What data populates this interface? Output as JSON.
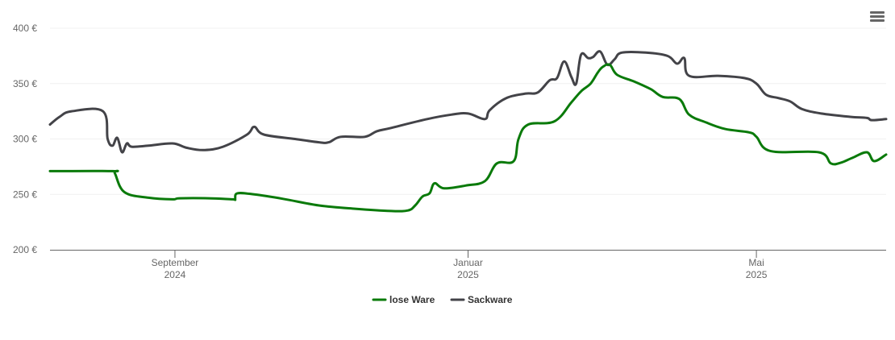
{
  "chart_data": {
    "type": "line",
    "title": "",
    "xlabel": "",
    "ylabel": "",
    "ylim": [
      200,
      400
    ],
    "y_ticks": [
      {
        "value": 200,
        "label": "200 €"
      },
      {
        "value": 250,
        "label": "250 €"
      },
      {
        "value": 300,
        "label": "300 €"
      },
      {
        "value": 350,
        "label": "350 €"
      },
      {
        "value": 400,
        "label": "400 €"
      }
    ],
    "xlim": [
      "2024-07-11",
      "2025-06-24"
    ],
    "x_ticks": [
      {
        "date": "2024-09-01",
        "label": "September",
        "year": "2024"
      },
      {
        "date": "2025-01-01",
        "label": "Januar",
        "year": "2025"
      },
      {
        "date": "2025-05-01",
        "label": "Mai",
        "year": "2025"
      }
    ],
    "grid": true,
    "legend_position": "bottom-center",
    "series": [
      {
        "name": "lose Ware",
        "color": "#0a7a0a",
        "points": [
          [
            "2024-07-11",
            271
          ],
          [
            "2024-08-06",
            271
          ],
          [
            "2024-08-07",
            269
          ],
          [
            "2024-08-11",
            252
          ],
          [
            "2024-08-21",
            247
          ],
          [
            "2024-08-31",
            245.5
          ],
          [
            "2024-09-03",
            246.5
          ],
          [
            "2024-09-15",
            246.5
          ],
          [
            "2024-09-25",
            245.5
          ],
          [
            "2024-09-26",
            245.5
          ],
          [
            "2024-09-27",
            251
          ],
          [
            "2024-10-04",
            250
          ],
          [
            "2024-10-16",
            246
          ],
          [
            "2024-10-31",
            240
          ],
          [
            "2024-11-15",
            237
          ],
          [
            "2024-11-30",
            235
          ],
          [
            "2024-12-07",
            235.5
          ],
          [
            "2024-12-10",
            240
          ],
          [
            "2024-12-13",
            248
          ],
          [
            "2024-12-16",
            251
          ],
          [
            "2024-12-18",
            260
          ],
          [
            "2024-12-22",
            255.5
          ],
          [
            "2024-12-31",
            258
          ],
          [
            "2025-01-08",
            262
          ],
          [
            "2025-01-13",
            278
          ],
          [
            "2025-01-20",
            280
          ],
          [
            "2025-01-22",
            300
          ],
          [
            "2025-01-26",
            313
          ],
          [
            "2025-02-06",
            316
          ],
          [
            "2025-02-13",
            333
          ],
          [
            "2025-02-17",
            343
          ],
          [
            "2025-02-21",
            350
          ],
          [
            "2025-02-24",
            360
          ],
          [
            "2025-02-26",
            365
          ],
          [
            "2025-03-01",
            367
          ],
          [
            "2025-03-04",
            358
          ],
          [
            "2025-03-11",
            352
          ],
          [
            "2025-03-18",
            345
          ],
          [
            "2025-03-23",
            338
          ],
          [
            "2025-03-30",
            336
          ],
          [
            "2025-04-03",
            322
          ],
          [
            "2025-04-10",
            315
          ],
          [
            "2025-04-18",
            309
          ],
          [
            "2025-04-28",
            306
          ],
          [
            "2025-05-01",
            302
          ],
          [
            "2025-05-07",
            289
          ],
          [
            "2025-05-27",
            288
          ],
          [
            "2025-06-01",
            278
          ],
          [
            "2025-06-05",
            278.5
          ],
          [
            "2025-06-10",
            283
          ],
          [
            "2025-06-16",
            288
          ],
          [
            "2025-06-19",
            280
          ],
          [
            "2025-06-24",
            286
          ]
        ]
      },
      {
        "name": "Sackware",
        "color": "#434348",
        "points": [
          [
            "2024-07-11",
            313
          ],
          [
            "2024-07-15",
            320
          ],
          [
            "2024-07-20",
            325
          ],
          [
            "2024-08-02",
            325
          ],
          [
            "2024-08-04",
            300
          ],
          [
            "2024-08-06",
            294
          ],
          [
            "2024-08-08",
            301
          ],
          [
            "2024-08-10",
            288
          ],
          [
            "2024-08-12",
            296
          ],
          [
            "2024-08-14",
            293
          ],
          [
            "2024-08-21",
            294
          ],
          [
            "2024-08-31",
            296
          ],
          [
            "2024-09-06",
            292
          ],
          [
            "2024-09-13",
            290
          ],
          [
            "2024-09-21",
            293
          ],
          [
            "2024-10-01",
            304
          ],
          [
            "2024-10-04",
            311
          ],
          [
            "2024-10-08",
            304
          ],
          [
            "2024-10-21",
            300
          ],
          [
            "2024-10-31",
            297
          ],
          [
            "2024-11-04",
            297
          ],
          [
            "2024-11-09",
            302
          ],
          [
            "2024-11-19",
            302
          ],
          [
            "2024-11-24",
            307
          ],
          [
            "2024-11-30",
            310
          ],
          [
            "2024-12-15",
            318
          ],
          [
            "2024-12-25",
            322
          ],
          [
            "2025-01-01",
            323
          ],
          [
            "2025-01-08",
            318
          ],
          [
            "2025-01-10",
            326
          ],
          [
            "2025-01-17",
            337
          ],
          [
            "2025-01-25",
            341
          ],
          [
            "2025-01-30",
            342
          ],
          [
            "2025-02-04",
            353
          ],
          [
            "2025-02-07",
            355
          ],
          [
            "2025-02-10",
            370
          ],
          [
            "2025-02-13",
            356
          ],
          [
            "2025-02-15",
            350
          ],
          [
            "2025-02-17",
            376
          ],
          [
            "2025-02-20",
            373
          ],
          [
            "2025-02-22",
            374
          ],
          [
            "2025-02-25",
            379
          ],
          [
            "2025-02-28",
            367
          ],
          [
            "2025-03-03",
            372
          ],
          [
            "2025-03-06",
            378
          ],
          [
            "2025-03-16",
            378
          ],
          [
            "2025-03-25",
            375
          ],
          [
            "2025-03-29",
            368
          ],
          [
            "2025-04-01",
            373
          ],
          [
            "2025-04-03",
            357
          ],
          [
            "2025-04-15",
            357
          ],
          [
            "2025-04-26",
            355
          ],
          [
            "2025-05-01",
            350
          ],
          [
            "2025-05-05",
            340
          ],
          [
            "2025-05-10",
            337
          ],
          [
            "2025-05-15",
            334
          ],
          [
            "2025-05-20",
            327
          ],
          [
            "2025-05-28",
            323
          ],
          [
            "2025-06-09",
            320
          ],
          [
            "2025-06-16",
            319
          ],
          [
            "2025-06-18",
            317
          ],
          [
            "2025-06-24",
            318
          ]
        ]
      }
    ]
  },
  "menu": {
    "icon": "hamburger-menu-icon"
  }
}
